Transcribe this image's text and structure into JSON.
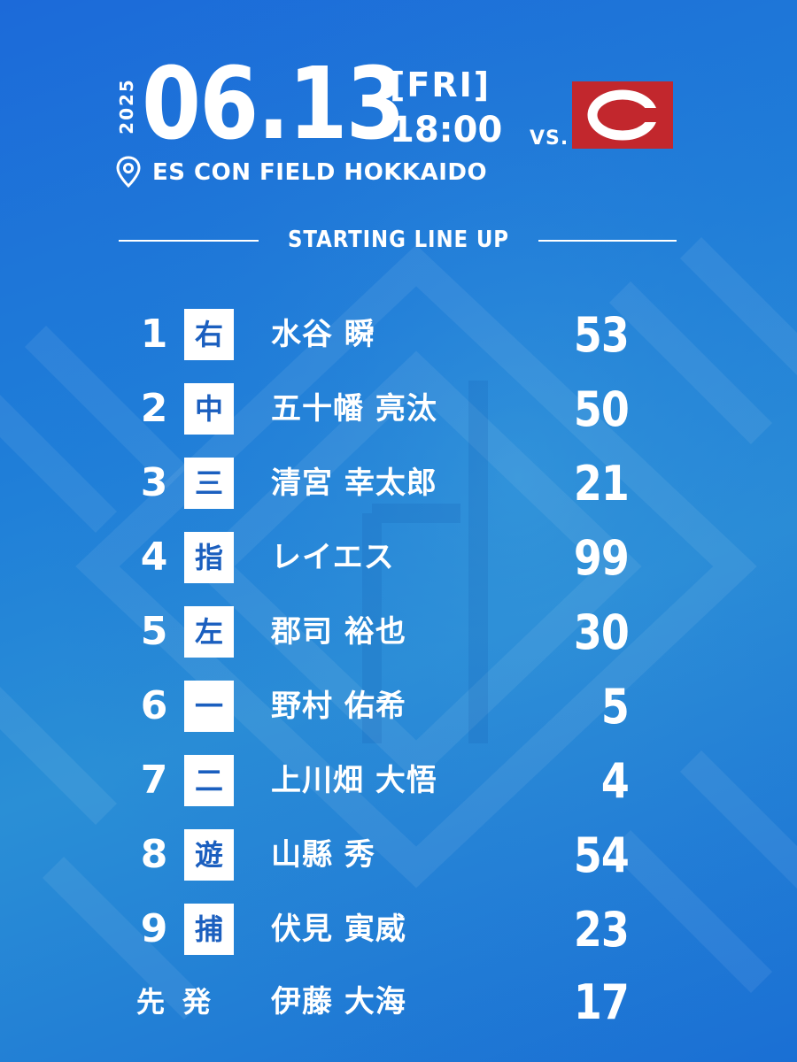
{
  "header": {
    "year": "2025",
    "date": "06.13",
    "day": "[FRI]",
    "time": "18:00",
    "vs_label": "VS.",
    "venue": "ES CON FIELD HOKKAIDO",
    "opponent_logo_icon": "carp-c-logo",
    "opponent_color": "#c2272d"
  },
  "section_title": "STARTING LINE UP",
  "lineup": [
    {
      "order": "1",
      "position": "右",
      "name": "水谷 瞬",
      "number": "53"
    },
    {
      "order": "2",
      "position": "中",
      "name": "五十幡 亮汰",
      "number": "50"
    },
    {
      "order": "3",
      "position": "三",
      "name": "清宮 幸太郎",
      "number": "21"
    },
    {
      "order": "4",
      "position": "指",
      "name": "レイエス",
      "number": "99"
    },
    {
      "order": "5",
      "position": "左",
      "name": "郡司 裕也",
      "number": "30"
    },
    {
      "order": "6",
      "position": "一",
      "name": "野村 佑希",
      "number": "5"
    },
    {
      "order": "7",
      "position": "二",
      "name": "上川畑 大悟",
      "number": "4"
    },
    {
      "order": "8",
      "position": "遊",
      "name": "山縣 秀",
      "number": "54"
    },
    {
      "order": "9",
      "position": "捕",
      "name": "伏見 寅威",
      "number": "23"
    }
  ],
  "starter": {
    "label": "先発",
    "name": "伊藤 大海",
    "number": "17"
  }
}
